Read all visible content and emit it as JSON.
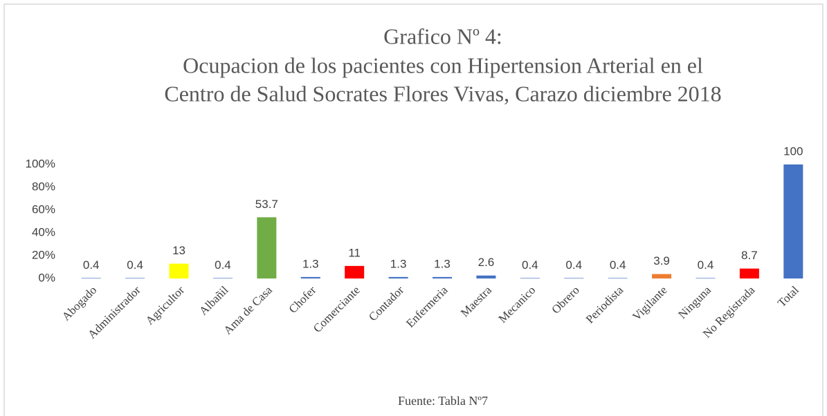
{
  "chart_data": {
    "type": "bar",
    "title": [
      "Grafico Nº 4:",
      "Ocupacion de los pacientes con Hipertension Arterial en el",
      "Centro de Salud Socrates Flores Vivas, Carazo diciembre 2018"
    ],
    "categories": [
      "Abogado",
      "Administrador",
      "Agricultor",
      "Albañil",
      "Ama de Casa",
      "Chofer",
      "Comerciante",
      "Contador",
      "Enfermeria",
      "Maestra",
      "Mecanico",
      "Obrero",
      "Periodista",
      "Vigilante",
      "Ninguna",
      "No Registrada",
      "Total"
    ],
    "values": [
      0.4,
      0.4,
      13,
      0.4,
      53.7,
      1.3,
      11,
      1.3,
      1.3,
      2.6,
      0.4,
      0.4,
      0.4,
      3.9,
      0.4,
      8.7,
      100
    ],
    "colors": [
      "#4472c4",
      "#4472c4",
      "#ffff00",
      "#4472c4",
      "#70ad47",
      "#4472c4",
      "#ff0000",
      "#4472c4",
      "#4472c4",
      "#4472c4",
      "#4472c4",
      "#4472c4",
      "#4472c4",
      "#ed7d31",
      "#4472c4",
      "#ff0000",
      "#4472c4"
    ],
    "ylim": [
      0,
      100
    ],
    "yticks": [
      {
        "value": 0,
        "label": "0%"
      },
      {
        "value": 20,
        "label": "20%"
      },
      {
        "value": 40,
        "label": "40%"
      },
      {
        "value": 60,
        "label": "60%"
      },
      {
        "value": 80,
        "label": "80%"
      },
      {
        "value": 100,
        "label": "100%"
      }
    ],
    "grid": false,
    "source": "Fuente: Tabla Nº7"
  }
}
